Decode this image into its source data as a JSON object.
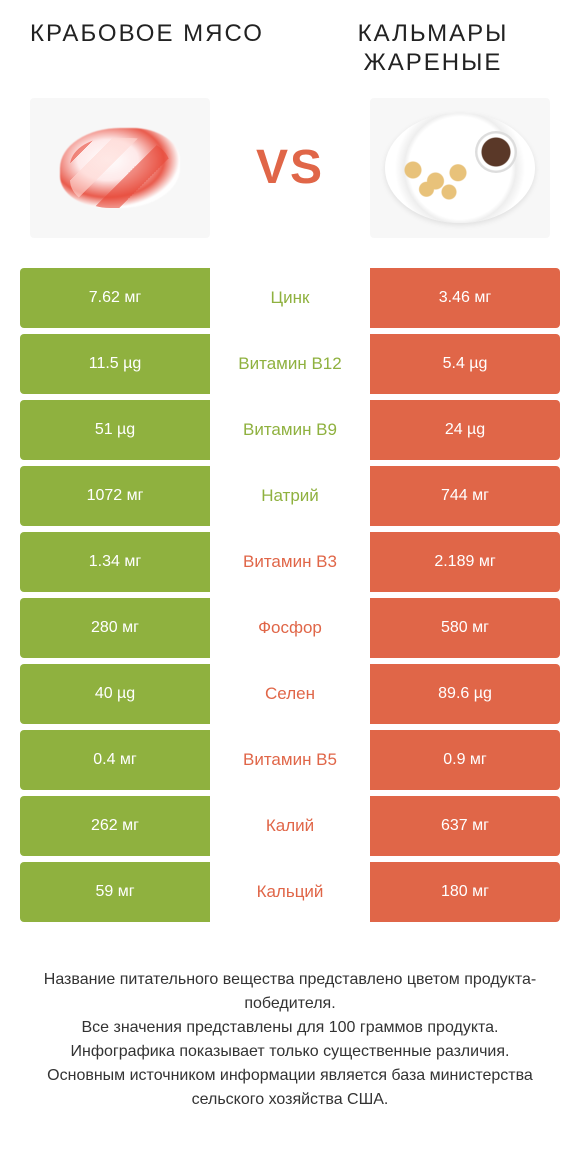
{
  "colors": {
    "green": "#8fb13f",
    "orange": "#e06648",
    "text": "#333333",
    "bg": "#ffffff"
  },
  "header": {
    "left_title": "КРАБОВОЕ МЯСО",
    "right_title": "КАЛЬМАРЫ ЖАРЕНЫЕ",
    "vs": "VS"
  },
  "rows": [
    {
      "left": "7.62 мг",
      "mid": "Цинк",
      "right": "3.46 мг",
      "winner": "left"
    },
    {
      "left": "11.5 µg",
      "mid": "Витамин B12",
      "right": "5.4 µg",
      "winner": "left"
    },
    {
      "left": "51 µg",
      "mid": "Витамин B9",
      "right": "24 µg",
      "winner": "left"
    },
    {
      "left": "1072 мг",
      "mid": "Натрий",
      "right": "744 мг",
      "winner": "left"
    },
    {
      "left": "1.34 мг",
      "mid": "Витамин B3",
      "right": "2.189 мг",
      "winner": "right"
    },
    {
      "left": "280 мг",
      "mid": "Фосфор",
      "right": "580 мг",
      "winner": "right"
    },
    {
      "left": "40 µg",
      "mid": "Селен",
      "right": "89.6 µg",
      "winner": "right"
    },
    {
      "left": "0.4 мг",
      "mid": "Витамин B5",
      "right": "0.9 мг",
      "winner": "right"
    },
    {
      "left": "262 мг",
      "mid": "Калий",
      "right": "637 мг",
      "winner": "right"
    },
    {
      "left": "59 мг",
      "mid": "Кальций",
      "right": "180 мг",
      "winner": "right"
    }
  ],
  "footer": {
    "line1": "Название питательного вещества представлено цветом продукта-победителя.",
    "line2": "Все значения представлены для 100 граммов продукта.",
    "line3": "Инфографика показывает только существенные различия.",
    "line4": "Основным источником информации является база министерства сельского хозяйства США."
  }
}
